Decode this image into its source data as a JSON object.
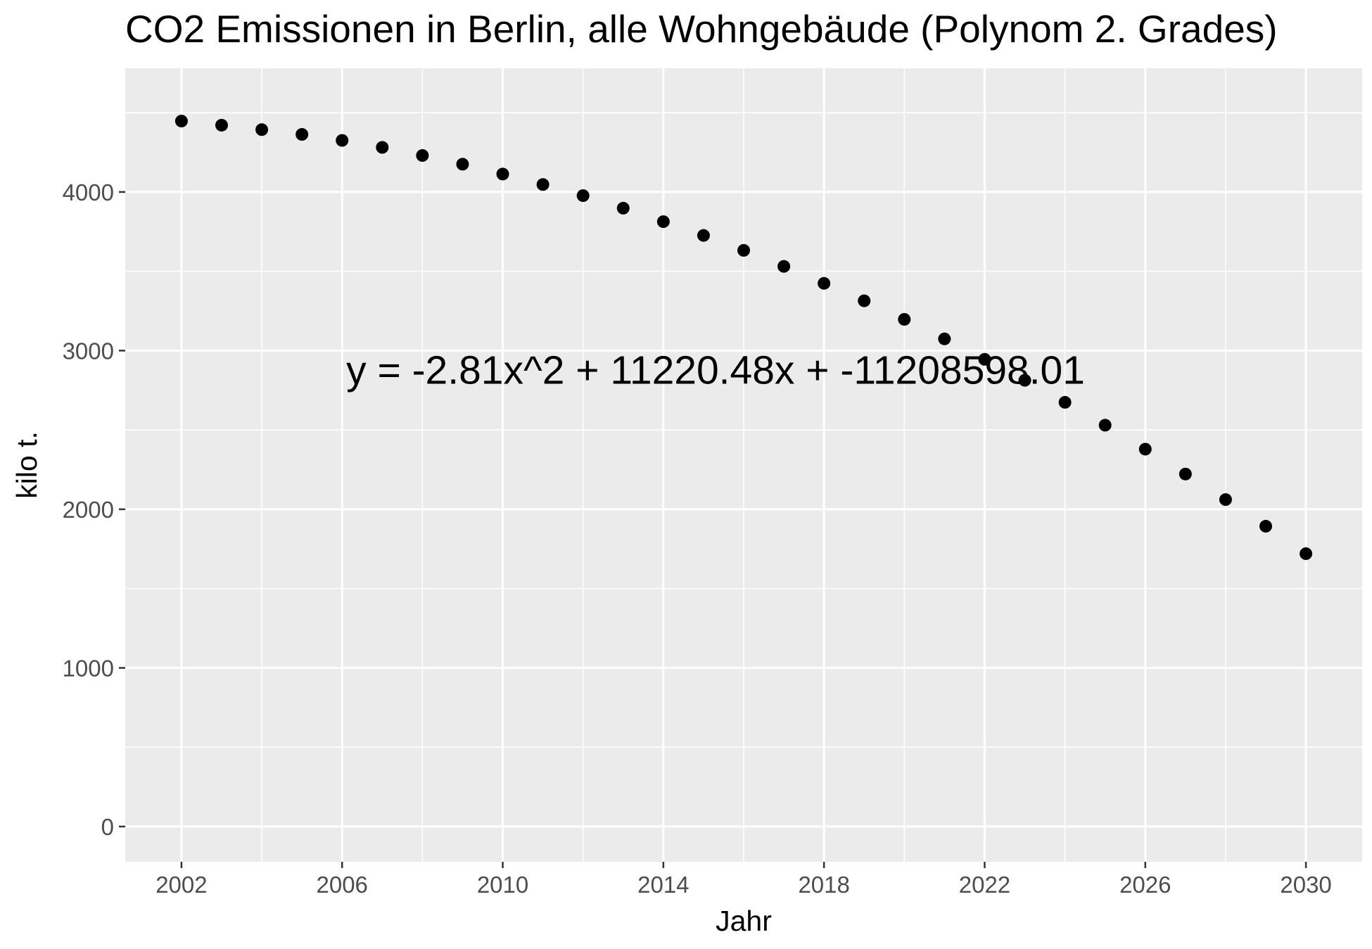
{
  "chart_data": {
    "type": "scatter",
    "title": "CO2 Emissionen in Berlin, alle Wohngebäude (Polynom 2. Grades)",
    "xlabel": "Jahr",
    "ylabel": "kilo t.",
    "xlim": [
      2000.6,
      2031.4
    ],
    "ylim": [
      -222,
      4780
    ],
    "x_ticks": [
      2002,
      2006,
      2010,
      2014,
      2018,
      2022,
      2026,
      2030
    ],
    "x_tick_labels": [
      "2002",
      "2006",
      "2010",
      "2014",
      "2018",
      "2022",
      "2026",
      "2030"
    ],
    "y_ticks": [
      0,
      1000,
      2000,
      3000,
      4000
    ],
    "y_tick_labels": [
      "0",
      "1000",
      "2000",
      "3000",
      "4000"
    ],
    "annotation": {
      "text": "y = -2.81x^2 + 11220.48x + -11208598.01",
      "x": 2015.3,
      "y": 2880
    },
    "grid": true,
    "legend": "none",
    "point_color": "#000000",
    "panel_background": "#ebebeb",
    "grid_color": "#ffffff",
    "x": [
      2002,
      2003,
      2004,
      2005,
      2006,
      2007,
      2008,
      2009,
      2010,
      2011,
      2012,
      2013,
      2014,
      2015,
      2016,
      2017,
      2018,
      2019,
      2020,
      2021,
      2022,
      2023,
      2024,
      2025,
      2026,
      2027,
      2028,
      2029,
      2030
    ],
    "y": [
      4447,
      4421,
      4393,
      4363,
      4325,
      4281,
      4230,
      4175,
      4113,
      4047,
      3977,
      3898,
      3813,
      3726,
      3632,
      3531,
      3424,
      3314,
      3197,
      3074,
      2945,
      2813,
      2674,
      2530,
      2379,
      2222,
      2061,
      1893,
      1720
    ]
  }
}
